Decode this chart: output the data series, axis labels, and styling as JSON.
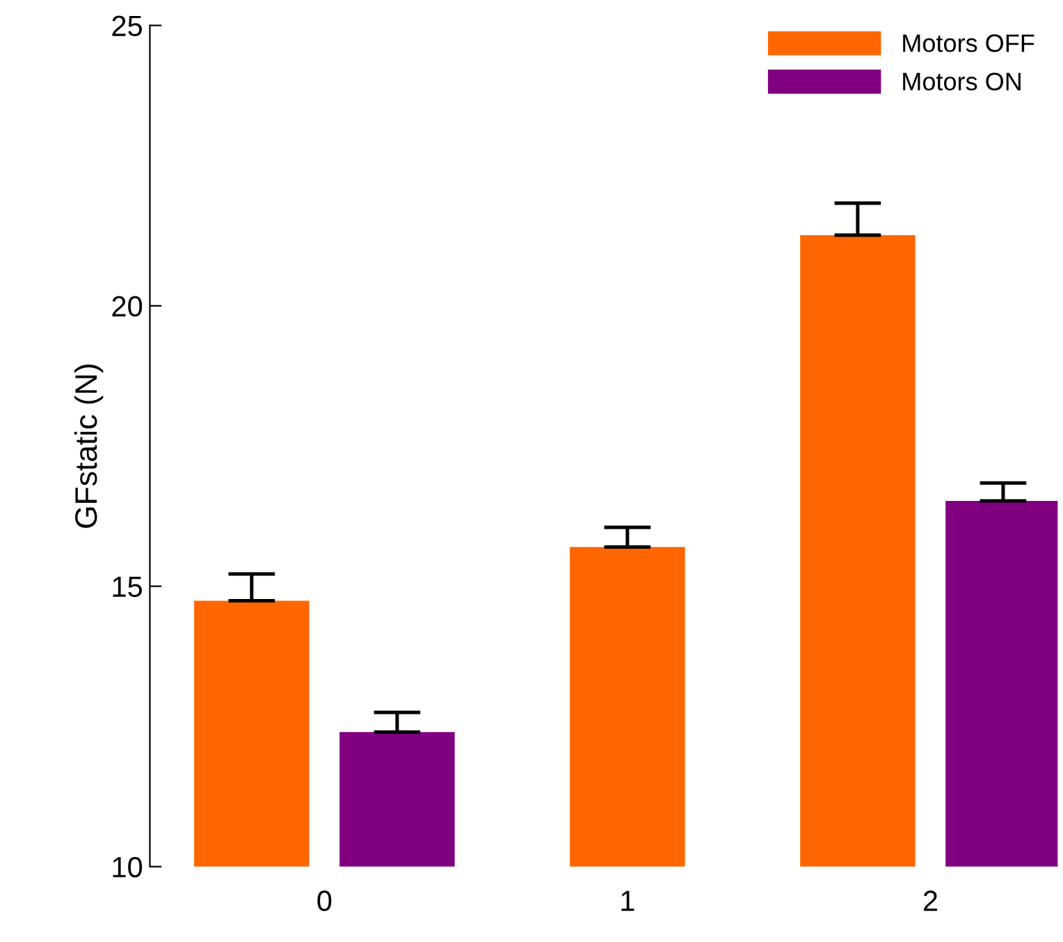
{
  "chart_data": {
    "type": "bar",
    "ylabel": "GFstatic (N)",
    "categories": [
      "0",
      "1",
      "2"
    ],
    "series": [
      {
        "name": "Motors OFF",
        "color": "#ff6600",
        "values": [
          14.74,
          15.7,
          21.26
        ],
        "errors": [
          [
            14.74,
            15.22
          ],
          [
            15.7,
            16.05
          ],
          [
            21.26,
            21.83
          ]
        ]
      },
      {
        "name": "Motors ON",
        "color": "#800080",
        "values": [
          12.4,
          null,
          16.52
        ],
        "errors": [
          [
            12.4,
            12.75
          ],
          null,
          [
            16.52,
            16.84
          ]
        ]
      }
    ],
    "ylim": [
      10,
      25
    ],
    "yticks": [
      10,
      15,
      20,
      25
    ],
    "grid": false,
    "legend": "top right"
  }
}
